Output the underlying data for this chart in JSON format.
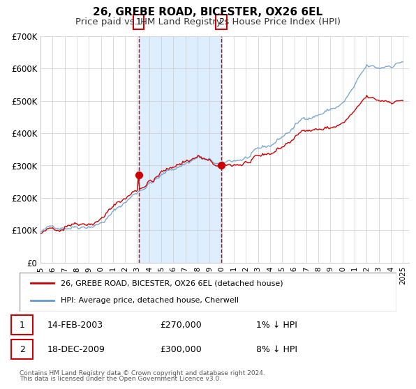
{
  "title": "26, GREBE ROAD, BICESTER, OX26 6EL",
  "subtitle": "Price paid vs. HM Land Registry's House Price Index (HPI)",
  "legend_line1": "26, GREBE ROAD, BICESTER, OX26 6EL (detached house)",
  "legend_line2": "HPI: Average price, detached house, Cherwell",
  "footnote1": "Contains HM Land Registry data © Crown copyright and database right 2024.",
  "footnote2": "This data is licensed under the Open Government Licence v3.0.",
  "sale1_label": "1",
  "sale1_date": "14-FEB-2003",
  "sale1_price": "£270,000",
  "sale1_hpi": "1% ↓ HPI",
  "sale2_label": "2",
  "sale2_date": "18-DEC-2009",
  "sale2_price": "£300,000",
  "sale2_hpi": "8% ↓ HPI",
  "sale1_year": 2003.12,
  "sale1_value": 270000,
  "sale2_year": 2009.96,
  "sale2_value": 300000,
  "vline1_year": 2003.12,
  "vline2_year": 2009.96,
  "shade_start": 2003.12,
  "shade_end": 2009.96,
  "red_color": "#cc0000",
  "blue_color": "#6699cc",
  "shade_color": "#ddeeff",
  "grid_color": "#cccccc",
  "xmin": 1995,
  "xmax": 2025.5,
  "ymin": 0,
  "ymax": 700000,
  "yticks": [
    0,
    100000,
    200000,
    300000,
    400000,
    500000,
    600000,
    700000
  ],
  "ytick_labels": [
    "£0",
    "£100K",
    "£200K",
    "£300K",
    "£400K",
    "£500K",
    "£600K",
    "£700K"
  ],
  "xticks": [
    1995,
    1996,
    1997,
    1998,
    1999,
    2000,
    2001,
    2002,
    2003,
    2004,
    2005,
    2006,
    2007,
    2008,
    2009,
    2010,
    2011,
    2012,
    2013,
    2014,
    2015,
    2016,
    2017,
    2018,
    2019,
    2020,
    2021,
    2022,
    2023,
    2024,
    2025
  ]
}
